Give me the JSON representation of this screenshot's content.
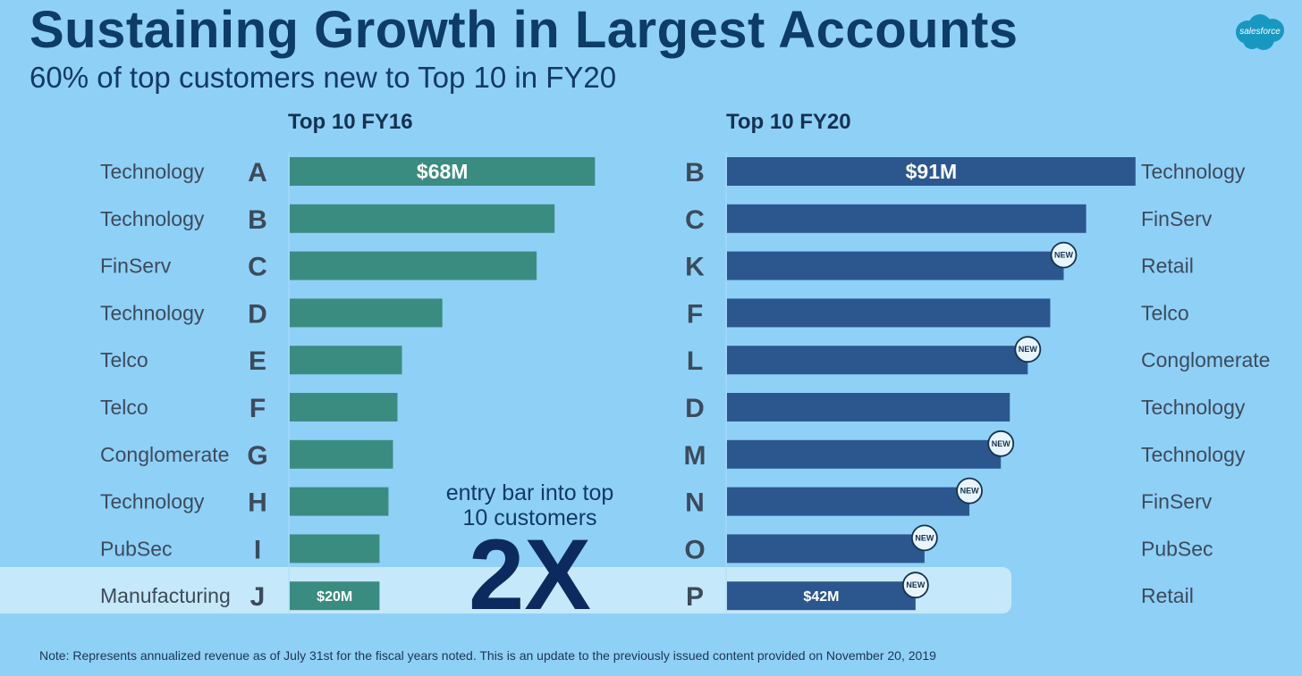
{
  "title": "Sustaining Growth in Largest Accounts",
  "subtitle": "60% of top customers new to Top 10 in FY20",
  "logo": {
    "text": "salesforce",
    "color": "#1798c1"
  },
  "callout": {
    "line1": "entry bar into top",
    "line2": "10 customers",
    "big": "2X"
  },
  "note": "Note: Represents annualized revenue as of July 31st for the fiscal years noted. This is an update to the previously issued content provided on November 20, 2019",
  "badge_text": "NEW",
  "colors": {
    "fy16": "#3a8c80",
    "fy20": "#2c578e",
    "highlight": "#c6e8fb",
    "background": "#8fd0f7"
  },
  "chart_data": [
    {
      "type": "bar",
      "orientation": "horizontal",
      "title": "Top 10 FY16",
      "categories": [
        "A",
        "B",
        "C",
        "D",
        "E",
        "F",
        "G",
        "H",
        "I",
        "J"
      ],
      "industries": [
        "Technology",
        "Technology",
        "FinServ",
        "Technology",
        "Telco",
        "Telco",
        "Conglomerate",
        "Technology",
        "PubSec",
        "Manufacturing"
      ],
      "values": [
        68,
        59,
        55,
        34,
        25,
        24,
        23,
        22,
        20,
        20
      ],
      "data_labels": [
        "$68M",
        "",
        "",
        "",
        "",
        "",
        "",
        "",
        "",
        "$20M"
      ],
      "new": [
        false,
        false,
        false,
        false,
        false,
        false,
        false,
        false,
        false,
        false
      ],
      "unit": "$M"
    },
    {
      "type": "bar",
      "orientation": "horizontal",
      "title": "Top 10 FY20",
      "categories": [
        "B",
        "C",
        "K",
        "F",
        "L",
        "D",
        "M",
        "N",
        "O",
        "P"
      ],
      "industries": [
        "Technology",
        "FinServ",
        "Retail",
        "Telco",
        "Conglomerate",
        "Technology",
        "Technology",
        "FinServ",
        "PubSec",
        "Retail"
      ],
      "values": [
        91,
        80,
        75,
        72,
        67,
        63,
        61,
        54,
        44,
        42
      ],
      "data_labels": [
        "$91M",
        "",
        "",
        "",
        "",
        "",
        "",
        "",
        "",
        "$42M"
      ],
      "new": [
        false,
        false,
        true,
        false,
        true,
        false,
        true,
        true,
        true,
        true
      ],
      "unit": "$M"
    }
  ]
}
